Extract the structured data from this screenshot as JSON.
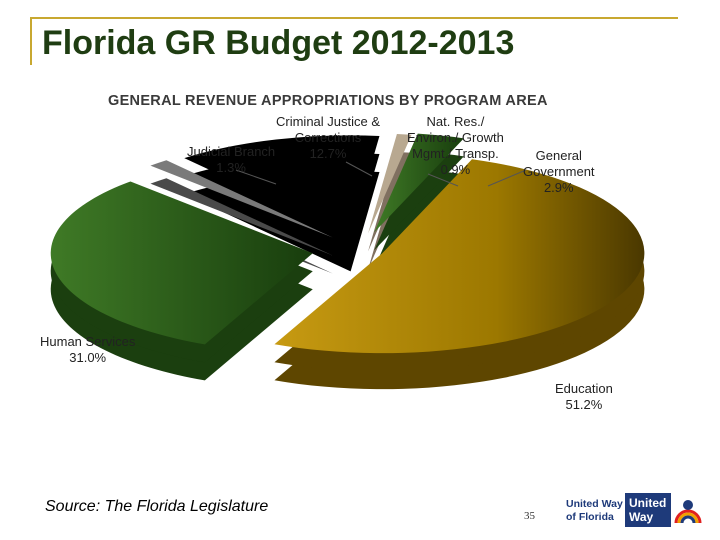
{
  "slide": {
    "title": "Florida GR Budget 2012-2013",
    "source": "Source:  The Florida Legislature",
    "page_number": "35"
  },
  "colors": {
    "education": "#a98100",
    "human_services": "#2e6419",
    "criminal_justice": "#000000",
    "judicial": "#7a7a7a",
    "nat_res": "#b8a890",
    "general_government": "#2e6419",
    "accent_rule": "#c8a830",
    "brand_blue": "#1e3a7a"
  },
  "logo": {
    "text_line1": "United Way",
    "text_line2": "of Florida",
    "box_line1": "United",
    "box_line2": "Way",
    "icon": "united-way-hand-rainbow-icon"
  },
  "chart_data": {
    "type": "pie",
    "title": "GENERAL REVENUE APPROPRIATIONS BY PROGRAM AREA",
    "slices": [
      {
        "label": "Education",
        "value": 51.2,
        "value_label": "51.2%"
      },
      {
        "label": "Human Services",
        "value": 31.0,
        "value_label": "31.0%"
      },
      {
        "label": "Judicial Branch",
        "value": 1.3,
        "value_label": "1.3%"
      },
      {
        "label": "Criminal Justice & Corrections",
        "value": 12.7,
        "value_label": "12.7%"
      },
      {
        "label": "Nat. Res./ Environ./ Growth Mgmt./ Transp.",
        "value": 0.9,
        "value_label": "0.9%"
      },
      {
        "label": "General Government",
        "value": 2.9,
        "value_label": "2.9%"
      }
    ]
  },
  "labels": {
    "education": {
      "l1": "Education",
      "l2": "51.2%"
    },
    "human_services": {
      "l1": "Human Services",
      "l2": "31.0%"
    },
    "judicial": {
      "l1": "Judicial Branch",
      "l2": "1.3%"
    },
    "criminal": {
      "l1": "Criminal Justice &",
      "l2": "Corrections",
      "l3": "12.7%"
    },
    "natres": {
      "l1": "Nat. Res./",
      "l2": "Environ./ Growth",
      "l3": "Mgmt./ Transp.",
      "l4": "0.9%"
    },
    "general": {
      "l1": "General",
      "l2": "Government",
      "l3": "2.9%"
    }
  }
}
